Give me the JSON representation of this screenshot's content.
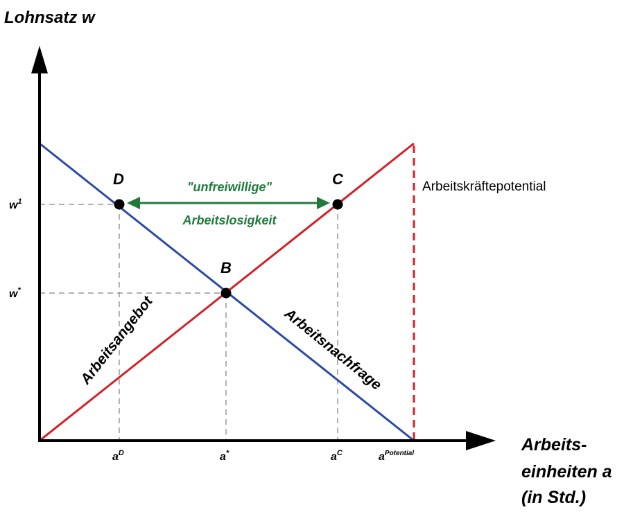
{
  "axes": {
    "y_title": "Lohnsatz w",
    "x_title_lines": [
      "Arbeits-",
      "einheiten a",
      "(in Std.)"
    ]
  },
  "y_ticks": {
    "w1": {
      "base": "w",
      "sup": "1"
    },
    "wstar": {
      "base": "w",
      "sup": "*"
    }
  },
  "x_ticks": {
    "aD": {
      "base": "a",
      "sup": "D"
    },
    "astar": {
      "base": "a",
      "sup": "*"
    },
    "aC": {
      "base": "a",
      "sup": "C"
    },
    "apot": {
      "base": "a",
      "sup": "Potential"
    }
  },
  "points": {
    "D": "D",
    "C": "C",
    "B": "B"
  },
  "curves": {
    "supply_label": "Arbeitsangebot",
    "demand_label": "Arbeitsnachfrage",
    "potential_label": "Arbeitskräftepotential"
  },
  "gap": {
    "line1": "\"unfreiwillige\"",
    "line2": "Arbeitslosigkeit"
  },
  "colors": {
    "supply": "#d42027",
    "demand": "#2a4aa8",
    "gap_arrow": "#1f7a3a",
    "guides": "#999999",
    "axes": "#000000"
  }
}
